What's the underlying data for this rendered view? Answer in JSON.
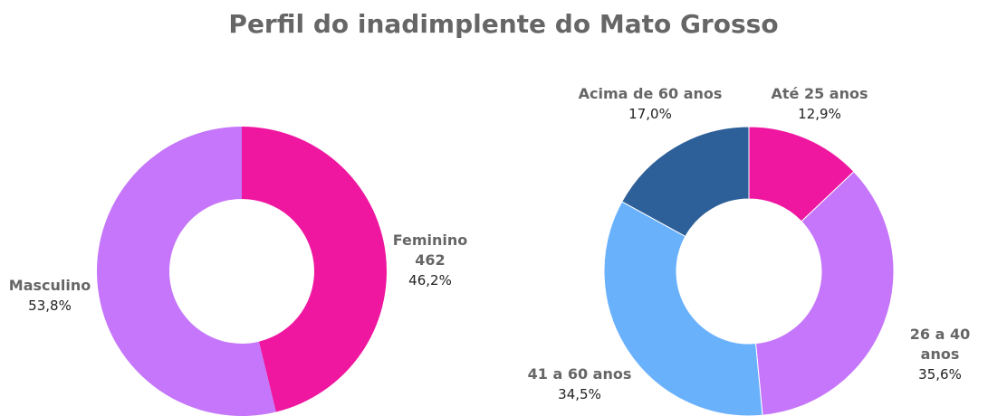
{
  "chart_data": [
    {
      "type": "pie",
      "donut": true,
      "title": "Perfil do inadimplente do Mato Grosso",
      "slices": [
        {
          "label": "Feminino",
          "count": "462",
          "value": 46.2,
          "pct": "46,2%",
          "color": "#EF16A0"
        },
        {
          "label": "Masculino",
          "value": 53.8,
          "pct": "53,8%",
          "color": "#C576FA"
        }
      ]
    },
    {
      "type": "pie",
      "donut": true,
      "slices": [
        {
          "label": "Até 25 anos",
          "value": 12.9,
          "pct": "12,9%",
          "color": "#EF16A0"
        },
        {
          "label": "26 a 40 anos",
          "value": 35.6,
          "pct": "35,6%",
          "color": "#C576FA"
        },
        {
          "label": "41 a 60 anos",
          "value": 34.5,
          "pct": "34,5%",
          "color": "#6AB1FC"
        },
        {
          "label": "Acima de 60 anos",
          "value": 17.0,
          "pct": "17,0%",
          "color": "#2D5F98"
        }
      ]
    }
  ]
}
